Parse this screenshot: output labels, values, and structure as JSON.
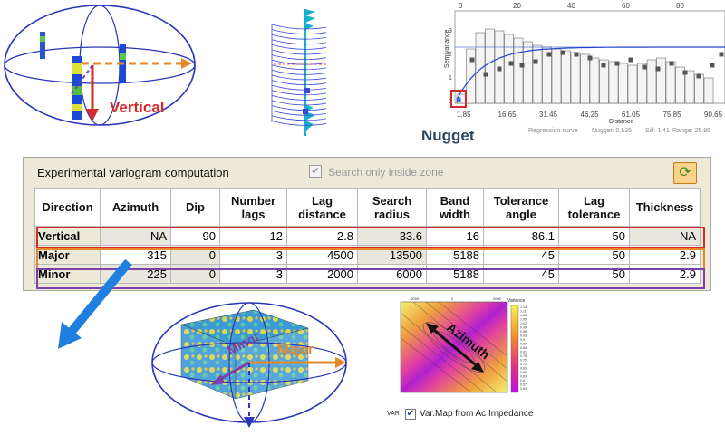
{
  "figures": {
    "ellipsoid_vertical_label": "Vertical",
    "nugget_label": "Nugget",
    "block_labels": {
      "minor": "Minor",
      "major": "Major"
    },
    "varmap_azimuth_label": "Azimuth"
  },
  "variogram_plot": {
    "y_axis_label": "Semivariance",
    "x_axis_label": "Distance",
    "top_ticks": [
      "0",
      "20",
      "40",
      "60",
      "80"
    ],
    "bottom_ticks": [
      "1.85",
      "16.65",
      "31.45",
      "46.25",
      "61.05",
      "75.85",
      "90.65"
    ],
    "y_ticks": [
      "3",
      "2",
      "1",
      "0"
    ],
    "footer": {
      "regression": "Regression curve",
      "nugget": "Nugget: 0.535",
      "sill": "Sill: 1.41",
      "range": "Range: 25.95"
    }
  },
  "panel": {
    "title": "Experimental variogram computation",
    "zone_checkbox_label": "Search only inside zone",
    "zone_checked": true,
    "refresh_icon": "refresh-icon"
  },
  "table": {
    "headers": [
      "Direction",
      "Azimuth",
      "Dip",
      "Number lags",
      "Lag distance",
      "Search radius",
      "Band width",
      "Tolerance angle",
      "Lag tolerance",
      "Thickness"
    ],
    "rows": [
      {
        "direction": "Vertical",
        "azimuth": "NA",
        "dip": "90",
        "number_lags": "12",
        "lag_distance": "2.8",
        "search_radius": "33.6",
        "band_width": "16",
        "tolerance_angle": "86.1",
        "lag_tolerance": "50",
        "thickness": "NA",
        "highlight": "#d42a2a"
      },
      {
        "direction": "Major",
        "azimuth": "315",
        "dip": "0",
        "number_lags": "3",
        "lag_distance": "4500",
        "search_radius": "13500",
        "band_width": "5188",
        "tolerance_angle": "45",
        "lag_tolerance": "50",
        "thickness": "2.9",
        "highlight": "#e8872a"
      },
      {
        "direction": "Minor",
        "azimuth": "225",
        "dip": "0",
        "number_lags": "3",
        "lag_distance": "2000",
        "search_radius": "6000",
        "band_width": "5188",
        "tolerance_angle": "45",
        "lag_tolerance": "50",
        "thickness": "2.9",
        "highlight": "#7b3fa8"
      }
    ]
  },
  "varmap": {
    "legend_title": "Variance",
    "legend_values": [
      "1.14",
      "1.11",
      "1.08",
      "1.05",
      "1.02",
      "0.99",
      "0.96",
      "0.93",
      "0.9",
      "0.87",
      "0.84",
      "0.81",
      "0.78",
      "0.75",
      "0.72",
      "0.69",
      "0.66",
      "0.63",
      "0.6",
      "0.57",
      "0.54"
    ],
    "x_ticks": [
      "-2000",
      "0",
      "2000"
    ],
    "var_label": "VAR",
    "checkbox_checked": true,
    "checkbox_label": "Var.Map from Ac Impedance"
  },
  "colors": {
    "vertical": "#d42a2a",
    "major": "#e8872a",
    "minor": "#7b3fa8",
    "ellipse": "#2a35b8",
    "arrow_blue": "#1e7fe0"
  }
}
